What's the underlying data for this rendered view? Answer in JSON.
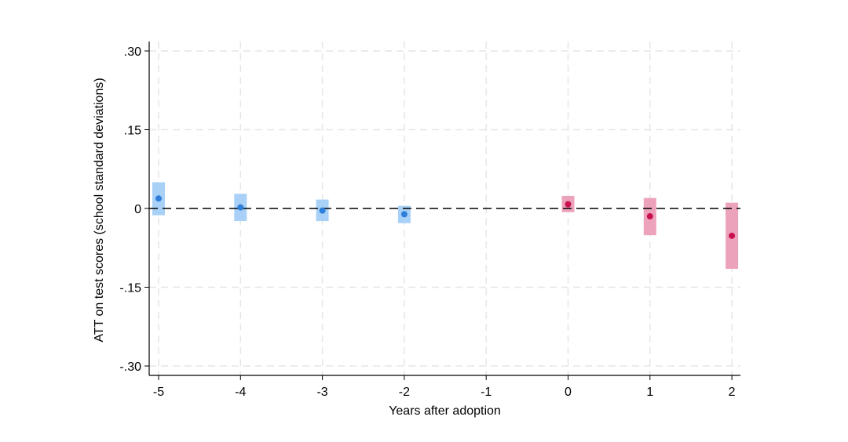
{
  "chart_data": {
    "type": "scatter",
    "xlabel": "Years after adoption",
    "ylabel": "ATT on test scores (school standard deviations)",
    "xlim": [
      -5,
      2
    ],
    "ylim": [
      -0.3,
      0.3
    ],
    "x_ticks": [
      -5,
      -4,
      -3,
      -2,
      -1,
      0,
      1,
      2
    ],
    "x_tick_labels": [
      "-5",
      "-4",
      "-3",
      "-2",
      "-1",
      "0",
      "1",
      "2"
    ],
    "y_ticks": [
      0.3,
      0.15,
      0,
      -0.15,
      -0.3
    ],
    "y_tick_labels": [
      ".30",
      ".15",
      "0",
      "-.15",
      "-.30"
    ],
    "grid": true,
    "reference_line": {
      "y": 0,
      "style": "dashed"
    },
    "series": [
      {
        "color": "#2e7fd9",
        "ci_color": "#a9d1f7",
        "points": [
          {
            "x": -5,
            "y": 0.019,
            "ci_low": -0.013,
            "ci_high": 0.05
          },
          {
            "x": -4,
            "y": 0.002,
            "ci_low": -0.024,
            "ci_high": 0.028
          },
          {
            "x": -3,
            "y": -0.004,
            "ci_low": -0.024,
            "ci_high": 0.017
          },
          {
            "x": -2,
            "y": -0.011,
            "ci_low": -0.028,
            "ci_high": 0.005
          }
        ]
      },
      {
        "color": "#c8114f",
        "ci_color": "#eda2bb",
        "points": [
          {
            "x": 0,
            "y": 0.008,
            "ci_low": -0.007,
            "ci_high": 0.024
          },
          {
            "x": 1,
            "y": -0.015,
            "ci_low": -0.051,
            "ci_high": 0.02
          },
          {
            "x": 2,
            "y": -0.052,
            "ci_low": -0.115,
            "ci_high": 0.011
          }
        ]
      }
    ]
  }
}
